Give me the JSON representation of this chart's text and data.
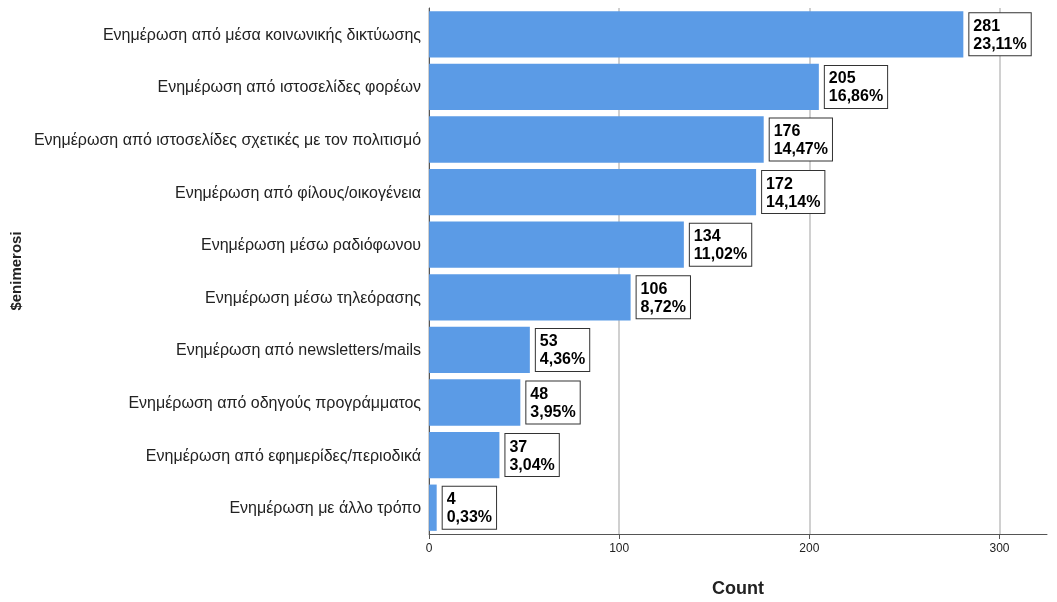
{
  "chart_data": {
    "type": "bar",
    "orientation": "horizontal",
    "xlabel": "Count",
    "ylabel": "$enimerosi",
    "categories": [
      "Ενημέρωση από μέσα κοινωνικής δικτύωσης",
      "Ενημέρωση από ιστοσελίδες φορέων",
      "Ενημέρωση από ιστοσελίδες σχετικές με τον πολιτισμό",
      "Ενημέρωση από φίλους/οικογένεια",
      "Ενημέρωση μέσω ραδιόφωνου",
      "Ενημέρωση μέσω τηλεόρασης",
      "Ενημέρωση από newsletters/mails",
      "Ενημέρωση από οδηγούς προγράμματος",
      "Ενημέρωση από εφημερίδες/περιοδικά",
      "Ενημέρωση με άλλο τρόπο"
    ],
    "values": [
      281,
      205,
      176,
      172,
      134,
      106,
      53,
      48,
      37,
      4
    ],
    "value_labels": [
      "281\n23,11%",
      "205\n16,86%",
      "176\n14,47%",
      "172\n14,14%",
      "134\n11,02%",
      "106\n8,72%",
      "53\n4,36%",
      "48\n3,95%",
      "37\n3,04%",
      "4\n0,33%"
    ],
    "color": "#5b9be6",
    "xlim": [
      0,
      325
    ],
    "xticks": [
      0,
      100,
      200,
      300
    ],
    "grid": "x"
  }
}
